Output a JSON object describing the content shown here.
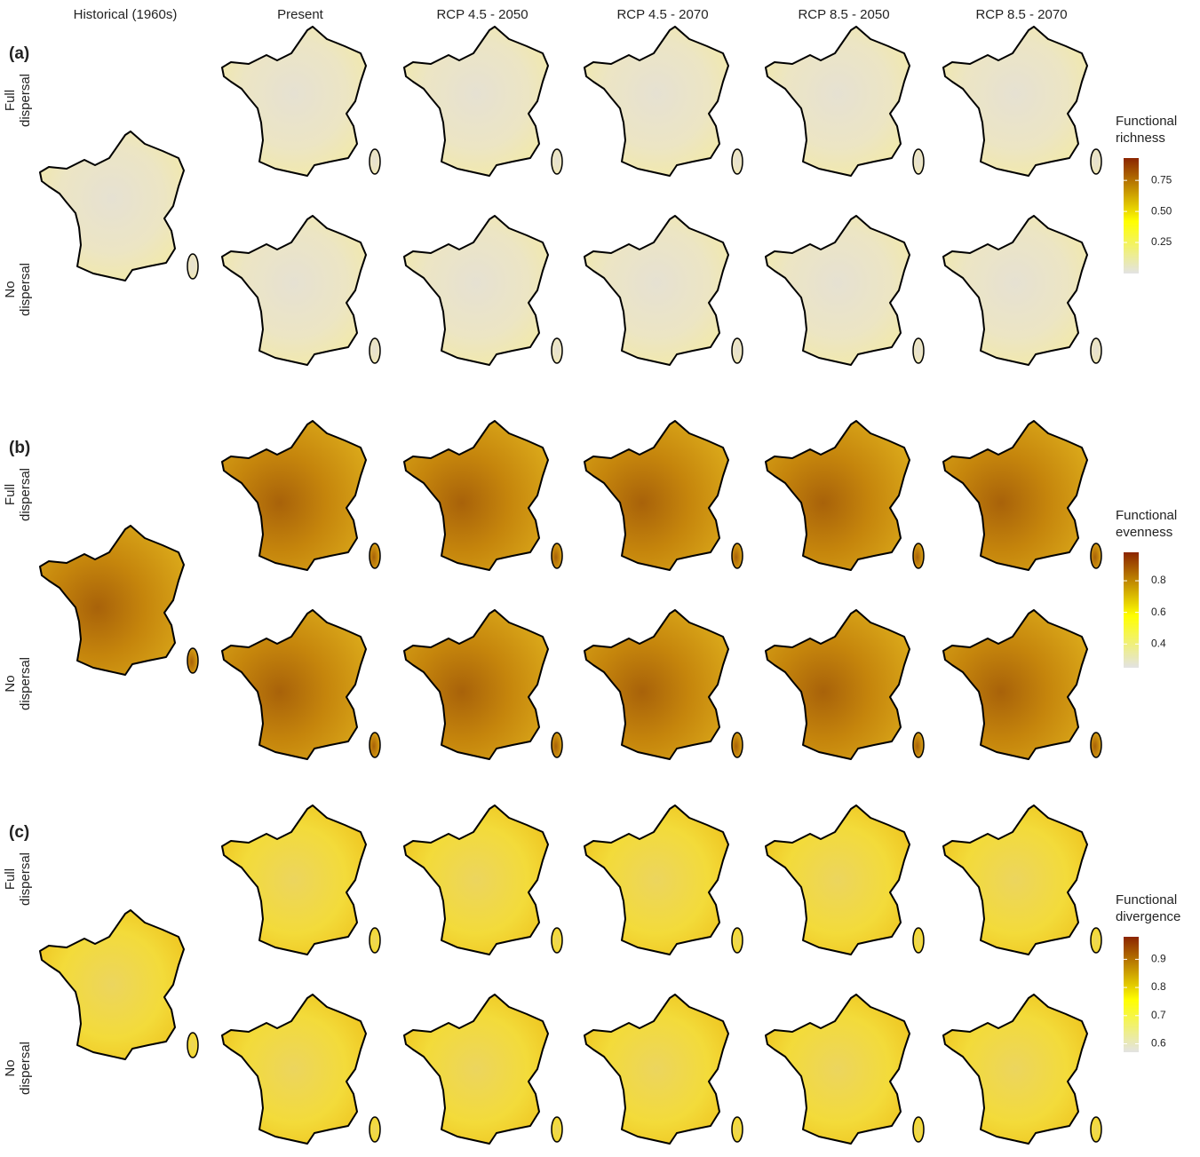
{
  "columns": [
    "Historical (1960s)",
    "Present",
    "RCP 4.5 - 2050",
    "RCP 4.5 - 2070",
    "RCP 8.5 - 2050",
    "RCP 8.5 - 2070"
  ],
  "panels": [
    {
      "label": "(a)",
      "rows": [
        [
          "Full",
          "dispersal"
        ],
        [
          "No",
          "dispersal"
        ]
      ],
      "legend": {
        "title": [
          "Functional",
          "richness"
        ],
        "range": [
          0,
          0.93
        ],
        "ticks": [
          0.25,
          {
            "value": 0.5,
            "label": "0.50"
          },
          0.75
        ]
      }
    },
    {
      "label": "(b)",
      "rows": [
        [
          "Full",
          "dispersal"
        ],
        [
          "No",
          "dispersal"
        ]
      ],
      "legend": {
        "title": [
          "Functional",
          "evenness"
        ],
        "range": [
          0.25,
          0.98
        ],
        "ticks": [
          0.4,
          0.6,
          0.8
        ]
      }
    },
    {
      "label": "(c)",
      "rows": [
        [
          "Full",
          "dispersal"
        ],
        [
          "No",
          "dispersal"
        ]
      ],
      "legend": {
        "title": [
          "Functional",
          "divergence"
        ],
        "range": [
          0.57,
          0.98
        ],
        "ticks": [
          0.6,
          0.7,
          0.8,
          0.9
        ]
      }
    }
  ]
}
